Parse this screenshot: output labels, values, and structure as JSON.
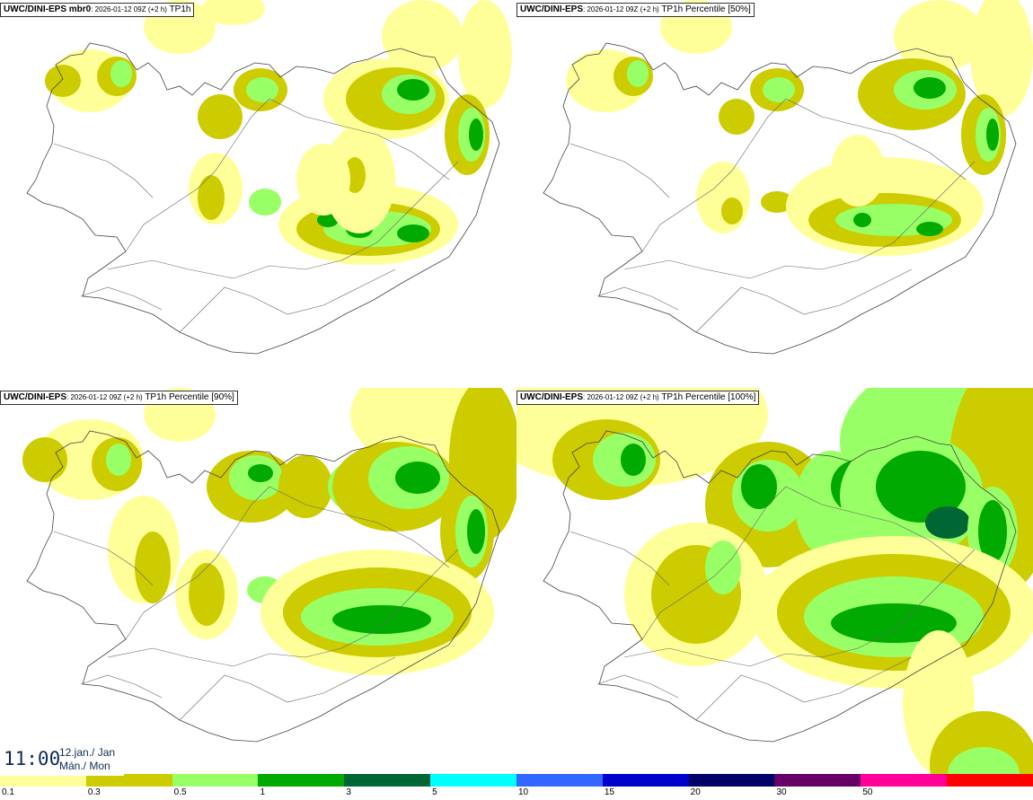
{
  "panels": [
    {
      "prefix": "UWC/DINI-EPS mbr0",
      "meta": ": 2026-01-12 09Z (+2 h)",
      "field": "TP1h"
    },
    {
      "prefix": "UWC/DINI-EPS",
      "meta": ": 2026-01-12 09Z (+2 h)",
      "field": "TP1h Percentile [50%]"
    },
    {
      "prefix": "UWC/DINI-EPS",
      "meta": ": 2026-01-12 09Z (+2 h)",
      "field": "TP1h Percentile [90%]"
    },
    {
      "prefix": "UWC/DINI-EPS",
      "meta": ": 2026-01-12 09Z (+2 h)",
      "field": "TP1h Percentile [100%]"
    }
  ],
  "clock": {
    "time": "11:00",
    "date_line1": "12.jan./ Jan",
    "date_line2": "Mán./ Mon"
  },
  "legend": {
    "colors": [
      "#ffff99",
      "#cccc00",
      "#99ff66",
      "#00aa00",
      "#006633",
      "#00ffff",
      "#3366ff",
      "#0000cc",
      "#000066",
      "#660066",
      "#ff0099",
      "#ff0000"
    ],
    "labels": [
      "0.1",
      "0.3",
      "0.5",
      "1",
      "3",
      "5",
      "10",
      "15",
      "20",
      "30",
      "50"
    ]
  }
}
